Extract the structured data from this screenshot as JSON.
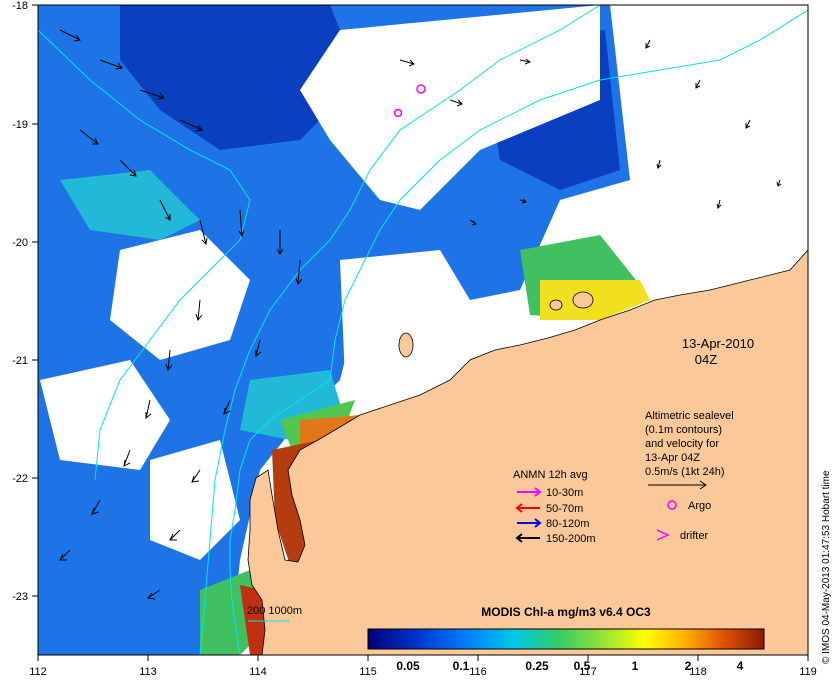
{
  "map": {
    "lon_ticks": [
      "112",
      "113",
      "114",
      "115",
      "116",
      "117",
      "118",
      "119"
    ],
    "lat_ticks": [
      "-18",
      "-19",
      "-20",
      "-21",
      "-22",
      "-23"
    ],
    "date_label": "13-Apr-2010",
    "time_label": "04Z",
    "altimetry_note": [
      "Altimetric sealevel",
      "(0.1m contours)",
      "and velocity for",
      "13-Apr 04Z",
      "0.5m/s (1kt 24h)"
    ],
    "depth_label": "200  1000m",
    "credit": "© IMOS 04-May-2013 01:47:53 Hobart time"
  },
  "legend": {
    "title": "ANMN 12h avg",
    "items": [
      {
        "label": "10-30m",
        "color": "#ff00ff"
      },
      {
        "label": "50-70m",
        "color": "#ff0000"
      },
      {
        "label": "80-120m",
        "color": "#0000ff"
      },
      {
        "label": "150-200m",
        "color": "#000000"
      }
    ],
    "argo_label": "Argo",
    "drifter_label": "drifter",
    "marker_color": "#ff00ff"
  },
  "colorbar": {
    "title": "MODIS Chl-a mg/m3 v6.4 OC3",
    "ticks": [
      "0.05",
      "0.1",
      "0.25",
      "0.5",
      "1",
      "2",
      "4"
    ]
  },
  "colors": {
    "land": "#fbc89a",
    "coastline": "#000000",
    "contour": "#00e5ee",
    "no_data": "#ffffff"
  }
}
